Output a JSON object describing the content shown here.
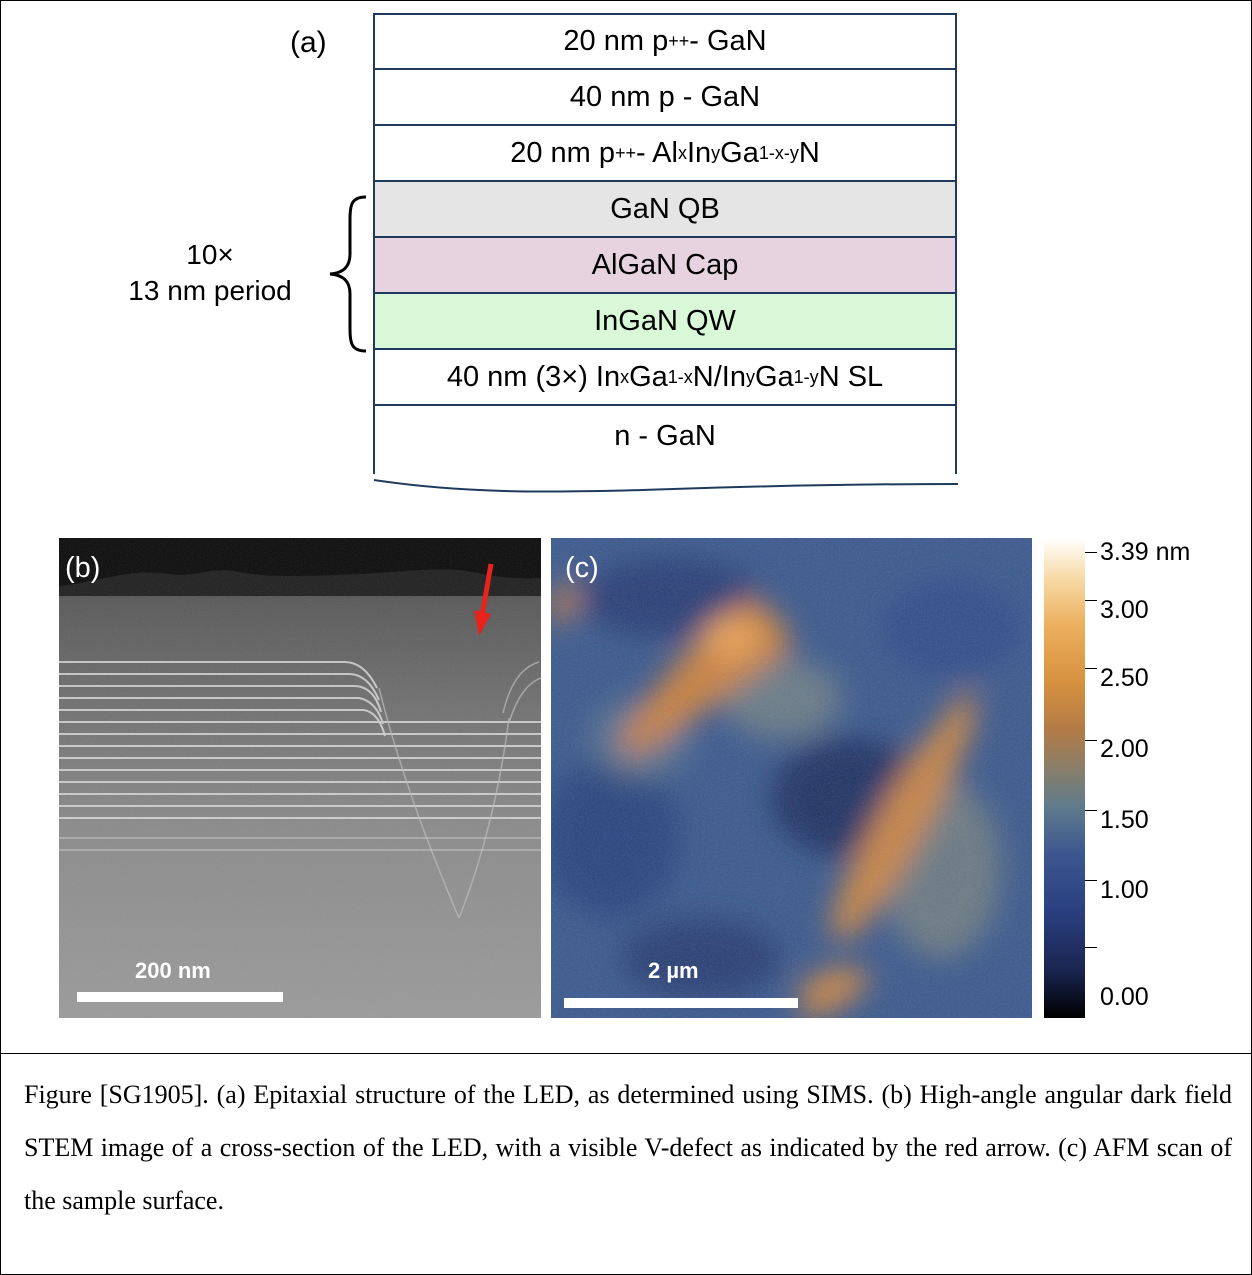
{
  "panel_a": {
    "label": "(a)",
    "layers": [
      {
        "thickness": "20 nm",
        "material_html": "p<sup>++</sup> - GaN",
        "fill": "#ffffff"
      },
      {
        "thickness": "40 nm",
        "material_html": "p - GaN",
        "fill": "#ffffff"
      },
      {
        "thickness": "20 nm",
        "material_html": "p<sup>++</sup> - Al<sub>x</sub>In<sub>y</sub>Ga<sub>1-x-y</sub>N",
        "fill": "#ffffff"
      },
      {
        "thickness": "",
        "material_html": "GaN QB",
        "fill": "#e5e5e5"
      },
      {
        "thickness": "",
        "material_html": "AlGaN Cap",
        "fill": "#e6d3df"
      },
      {
        "thickness": "",
        "material_html": "InGaN QW",
        "fill": "#d8f8d8"
      },
      {
        "thickness": "40 nm",
        "material_html": "(3×) In<sub>x</sub>Ga<sub>1-x</sub>N/In<sub>y</sub>Ga<sub>1-y</sub>N SL",
        "fill": "#ffffff"
      }
    ],
    "substrate": "n - GaN",
    "period_line1": "10×",
    "period_line2": "13 nm period"
  },
  "panel_b": {
    "label": "(b)",
    "scale_bar": "200 nm",
    "arrow_color": "#e8221c"
  },
  "panel_c": {
    "label": "(c)",
    "scale_bar": "2 µm",
    "colorbar_labels": [
      "3.39 nm",
      "3.00",
      "2.50",
      "2.00",
      "1.50",
      "1.00",
      "0.00"
    ]
  },
  "caption": "Figure [SG1905]. (a) Epitaxial structure of the LED, as determined using SIMS. (b) High-angle angular dark field STEM image of a cross-section of the LED, with a visible V-defect as indicated by the red arrow. (c) AFM scan of the sample surface."
}
